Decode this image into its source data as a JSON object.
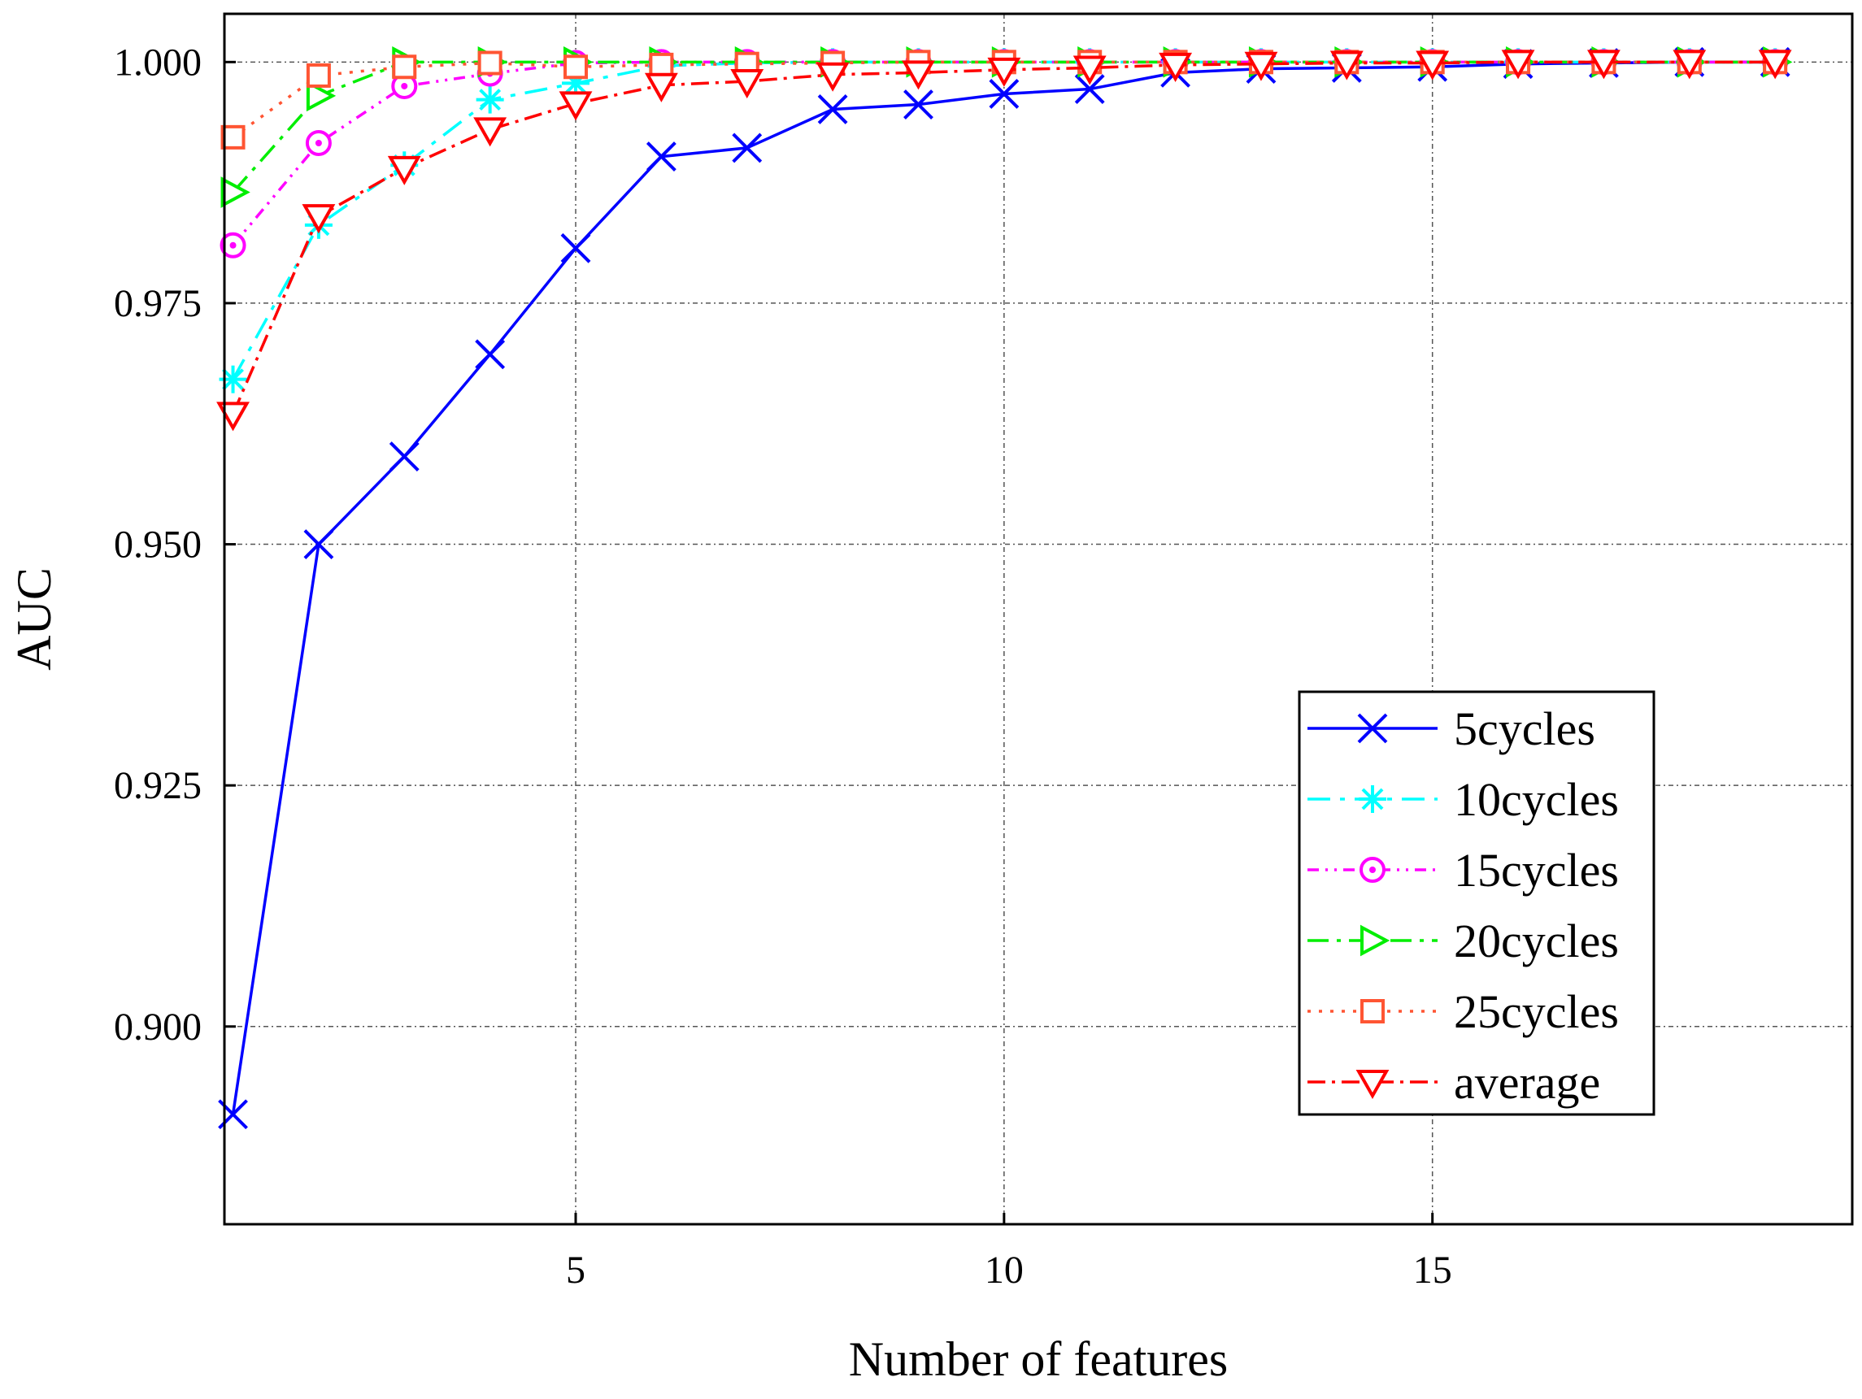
{
  "chart_data": {
    "type": "line",
    "title": "",
    "xlabel": "Number of features",
    "ylabel": "AUC",
    "xlim": [
      0.9,
      19.9
    ],
    "ylim": [
      0.8795,
      1.005
    ],
    "grid": true,
    "legend_position": "lower-right",
    "x": [
      1,
      2,
      3,
      4,
      5,
      6,
      7,
      8,
      9,
      10,
      11,
      12,
      13,
      14,
      15,
      16,
      17,
      18,
      19
    ],
    "x_ticks": [
      {
        "value": 5,
        "label": "5"
      },
      {
        "value": 10,
        "label": "10"
      },
      {
        "value": 15,
        "label": "15"
      }
    ],
    "y_ticks": [
      {
        "value": 0.9,
        "label": "0.900"
      },
      {
        "value": 0.925,
        "label": "0.925"
      },
      {
        "value": 0.95,
        "label": "0.950"
      },
      {
        "value": 0.975,
        "label": "0.975"
      },
      {
        "value": 1.0,
        "label": "1.000"
      }
    ],
    "series": [
      {
        "name": "5cycles",
        "color": "#0000ff",
        "marker": "x",
        "dash": "",
        "values": [
          0.8909,
          0.95,
          0.9591,
          0.9697,
          0.9807,
          0.9902,
          0.9911,
          0.9951,
          0.9956,
          0.9967,
          0.9972,
          0.9989,
          0.9993,
          0.9994,
          0.9995,
          0.9998,
          0.9999,
          1.0,
          1.0
        ]
      },
      {
        "name": "10cycles",
        "color": "#00ffff",
        "marker": "asterisk",
        "dash": "28,12,6,12",
        "values": [
          0.9671,
          0.9831,
          0.9893,
          0.9961,
          0.9978,
          0.9996,
          0.9999,
          1.0,
          1.0,
          1.0,
          1.0,
          1.0,
          1.0,
          1.0,
          1.0,
          1.0,
          1.0,
          1.0,
          1.0
        ]
      },
      {
        "name": "15cycles",
        "color": "#ff00ff",
        "marker": "circle",
        "dash": "14,8,3,8,3,8",
        "values": [
          0.981,
          0.9916,
          0.9975,
          0.9988,
          0.9999,
          1.0,
          1.0,
          1.0,
          1.0,
          1.0,
          1.0,
          1.0,
          1.0,
          1.0,
          1.0,
          1.0,
          1.0,
          1.0,
          1.0
        ]
      },
      {
        "name": "20cycles",
        "color": "#00ee00",
        "marker": "triangle-right",
        "dash": "26,10,5,10",
        "values": [
          0.9865,
          0.9965,
          1.0,
          1.0,
          1.0,
          1.0,
          1.0,
          1.0,
          1.0,
          1.0,
          1.0,
          1.0,
          1.0,
          1.0,
          1.0,
          1.0,
          1.0,
          1.0,
          1.0
        ]
      },
      {
        "name": "25cycles",
        "color": "#ff5533",
        "marker": "square",
        "dash": "4,10",
        "values": [
          0.9922,
          0.9986,
          0.9995,
          0.9999,
          0.9995,
          0.9997,
          0.9998,
          0.9999,
          1.0,
          1.0,
          1.0,
          1.0,
          1.0,
          1.0,
          1.0,
          1.0,
          1.0,
          1.0,
          1.0
        ]
      },
      {
        "name": "average",
        "color": "#ff0000",
        "marker": "triangle-down",
        "dash": "22,8,4,8",
        "values": [
          0.9635,
          0.984,
          0.989,
          0.993,
          0.9957,
          0.9976,
          0.998,
          0.9987,
          0.9989,
          0.9992,
          0.9994,
          0.9997,
          0.9998,
          0.9999,
          0.9999,
          1.0,
          1.0,
          1.0,
          1.0
        ]
      }
    ]
  }
}
